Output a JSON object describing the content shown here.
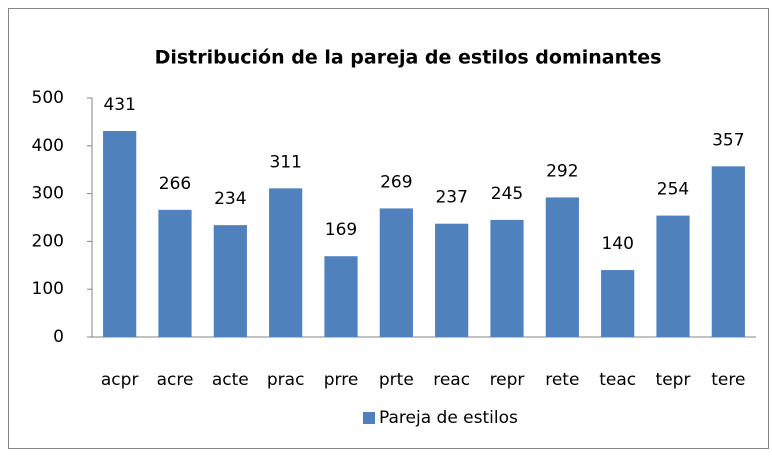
{
  "chart_data": {
    "type": "bar",
    "title": "Distribución de la pareja de estilos dominantes",
    "categories": [
      "acpr",
      "acre",
      "acte",
      "prac",
      "prre",
      "prte",
      "reac",
      "repr",
      "rete",
      "teac",
      "tepr",
      "tere"
    ],
    "series": [
      {
        "name": "Pareja de estilos",
        "color": "#4f81bd",
        "values": [
          431,
          266,
          234,
          311,
          169,
          269,
          237,
          245,
          292,
          140,
          254,
          357
        ]
      }
    ],
    "ylim": [
      0,
      500
    ],
    "yticks": [
      0,
      100,
      200,
      300,
      400,
      500
    ],
    "grid": false,
    "legend": "bottom"
  }
}
